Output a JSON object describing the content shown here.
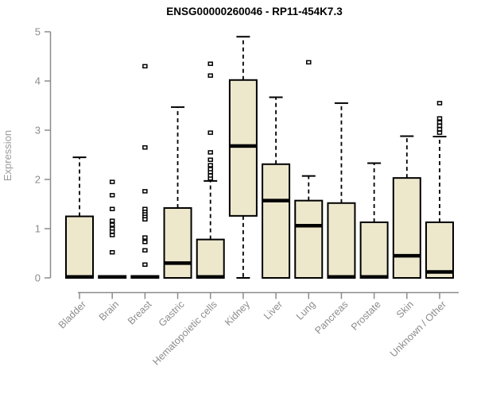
{
  "chart_data": {
    "type": "boxplot",
    "title": "ENSG00000260046 - RP11-454K7.3",
    "ylabel": "Expression",
    "xlabel": "",
    "ylim": [
      0,
      5
    ],
    "yticks": [
      0,
      1,
      2,
      3,
      4,
      5
    ],
    "grid": false,
    "legend": "none",
    "colors": {
      "box_fill": "#EDE7CC",
      "box_stroke": "#000000",
      "median": "#000000",
      "whisker": "#000000",
      "axis": "#8C8C8C",
      "tick_label": "#8C8C8C",
      "title": "#000000",
      "ylabel": "#9B9B9B",
      "outlier_fill": "#FFFFFF",
      "background": "#FFFFFF"
    },
    "categories": [
      "Bladder",
      "Brain",
      "Breast",
      "Gastric",
      "Hematopoietic cells",
      "Kidney",
      "Liver",
      "Lung",
      "Pancreas",
      "Prostate",
      "Skin",
      "Unknown / Other"
    ],
    "series": [
      {
        "name": "Bladder",
        "q1": 0,
        "median": 0.02,
        "q3": 1.25,
        "whisker_low": 0,
        "whisker_high": 2.45,
        "outliers": []
      },
      {
        "name": "Brain",
        "q1": 0,
        "median": 0.02,
        "q3": 0.04,
        "whisker_low": 0,
        "whisker_high": 0.04,
        "outliers": [
          1.95,
          1.68,
          1.4,
          1.16,
          1.08,
          1.0,
          0.94,
          0.87,
          0.52
        ]
      },
      {
        "name": "Breast",
        "q1": 0,
        "median": 0.02,
        "q3": 0.04,
        "whisker_low": 0,
        "whisker_high": 0.04,
        "outliers": [
          4.3,
          2.65,
          1.76,
          1.4,
          1.34,
          1.29,
          1.24,
          1.19,
          0.82,
          0.73,
          0.56,
          0.27
        ]
      },
      {
        "name": "Gastric",
        "q1": 0,
        "median": 0.3,
        "q3": 1.42,
        "whisker_low": 0,
        "whisker_high": 3.47,
        "outliers": []
      },
      {
        "name": "Hematopoietic cells",
        "q1": 0,
        "median": 0.02,
        "q3": 0.78,
        "whisker_low": 0,
        "whisker_high": 1.97,
        "outliers": [
          2.02,
          2.08,
          2.15,
          2.21,
          2.29,
          2.4,
          2.55,
          2.95,
          4.11,
          4.35
        ]
      },
      {
        "name": "Kidney",
        "q1": 1.26,
        "median": 2.68,
        "q3": 4.02,
        "whisker_low": 0,
        "whisker_high": 4.9,
        "outliers": []
      },
      {
        "name": "Liver",
        "q1": 0,
        "median": 1.57,
        "q3": 2.31,
        "whisker_low": 0,
        "whisker_high": 3.67,
        "outliers": []
      },
      {
        "name": "Lung",
        "q1": 0,
        "median": 1.06,
        "q3": 1.57,
        "whisker_low": 0,
        "whisker_high": 2.07,
        "outliers": [
          4.38
        ]
      },
      {
        "name": "Pancreas",
        "q1": 0,
        "median": 0.02,
        "q3": 1.52,
        "whisker_low": 0,
        "whisker_high": 3.55,
        "outliers": []
      },
      {
        "name": "Prostate",
        "q1": 0,
        "median": 0.02,
        "q3": 1.13,
        "whisker_low": 0,
        "whisker_high": 2.33,
        "outliers": []
      },
      {
        "name": "Skin",
        "q1": 0,
        "median": 0.45,
        "q3": 2.03,
        "whisker_low": 0,
        "whisker_high": 2.88,
        "outliers": []
      },
      {
        "name": "Unknown / Other",
        "q1": 0,
        "median": 0.12,
        "q3": 1.13,
        "whisker_low": 0,
        "whisker_high": 2.87,
        "outliers": [
          2.95,
          3.02,
          3.09,
          3.16,
          3.24,
          3.55
        ]
      }
    ]
  }
}
